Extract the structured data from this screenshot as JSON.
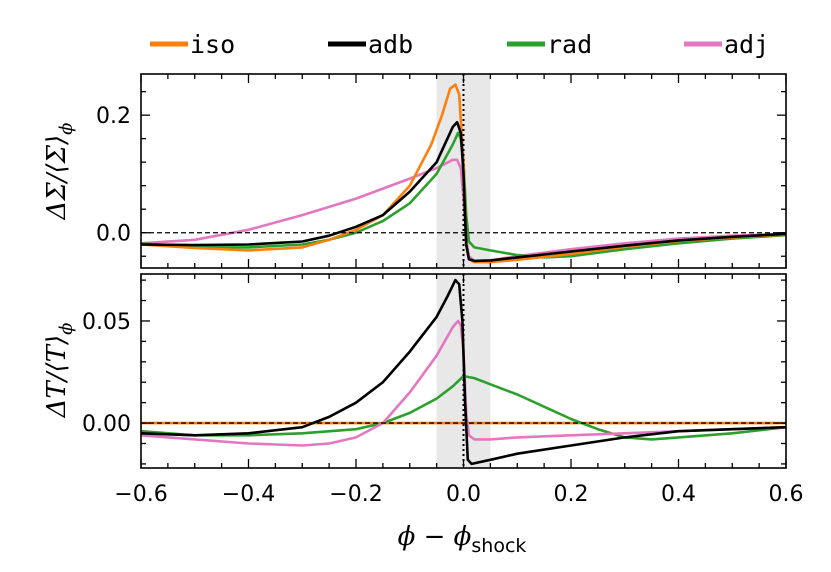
{
  "chart_data": {
    "type": "line",
    "legend": {
      "placement": "top",
      "entries": [
        {
          "key": "iso",
          "label": "iso",
          "color": "#ff7f0e"
        },
        {
          "key": "adb",
          "label": "adb",
          "color": "#000000"
        },
        {
          "key": "rad",
          "label": "rad",
          "color": "#2ca02c"
        },
        {
          "key": "adj",
          "label": "adj",
          "color": "#e377c2"
        }
      ]
    },
    "shared_x": {
      "label": "φ − φ_shock",
      "label_main": "ϕ − ϕ",
      "label_sub": "shock",
      "xlim": [
        -0.6,
        0.6
      ],
      "ticks": [
        -0.6,
        -0.4,
        -0.2,
        0.0,
        0.2,
        0.4,
        0.6
      ],
      "tick_labels": [
        "−0.6",
        "−0.4",
        "−0.2",
        "0.0",
        "0.2",
        "0.4",
        "0.6"
      ]
    },
    "shaded_band": {
      "x": [
        -0.05,
        0.05
      ],
      "color": "#e8e8e8"
    },
    "vline": {
      "x": 0.0,
      "style": "dotted"
    },
    "panels": [
      {
        "id": "top",
        "ylabel": "ΔΣ/⟨Σ⟩_φ",
        "ylabel_main": "ΔΣ/⟨Σ⟩",
        "ylabel_sub": "ϕ",
        "ylim": [
          -0.06,
          0.27
        ],
        "yticks": [
          0.0,
          0.2
        ],
        "ytick_labels": [
          "0.0",
          "0.2"
        ],
        "hline": 0.0,
        "series": [
          {
            "key": "adj",
            "points": [
              [
                -0.6,
                -0.018
              ],
              [
                -0.5,
                -0.012
              ],
              [
                -0.4,
                0.005
              ],
              [
                -0.3,
                0.03
              ],
              [
                -0.2,
                0.058
              ],
              [
                -0.1,
                0.092
              ],
              [
                -0.05,
                0.11
              ],
              [
                -0.02,
                0.124
              ],
              [
                -0.012,
                0.124
              ],
              [
                -0.005,
                0.11
              ],
              [
                0.0,
                0.06
              ],
              [
                0.005,
                -0.01
              ],
              [
                0.01,
                -0.04
              ],
              [
                0.02,
                -0.048
              ],
              [
                0.05,
                -0.047
              ],
              [
                0.1,
                -0.04
              ],
              [
                0.2,
                -0.028
              ],
              [
                0.3,
                -0.018
              ],
              [
                0.4,
                -0.01
              ],
              [
                0.5,
                -0.005
              ],
              [
                0.6,
                -0.002
              ]
            ]
          },
          {
            "key": "rad",
            "points": [
              [
                -0.6,
                -0.018
              ],
              [
                -0.5,
                -0.025
              ],
              [
                -0.4,
                -0.025
              ],
              [
                -0.3,
                -0.02
              ],
              [
                -0.25,
                -0.012
              ],
              [
                -0.2,
                0.0
              ],
              [
                -0.15,
                0.02
              ],
              [
                -0.1,
                0.05
              ],
              [
                -0.05,
                0.1
              ],
              [
                -0.02,
                0.15
              ],
              [
                -0.01,
                0.17
              ],
              [
                -0.005,
                0.16
              ],
              [
                0.0,
                0.12
              ],
              [
                0.005,
                0.03
              ],
              [
                0.01,
                -0.015
              ],
              [
                0.02,
                -0.025
              ],
              [
                0.05,
                -0.03
              ],
              [
                0.1,
                -0.038
              ],
              [
                0.15,
                -0.042
              ],
              [
                0.2,
                -0.04
              ],
              [
                0.3,
                -0.028
              ],
              [
                0.4,
                -0.018
              ],
              [
                0.5,
                -0.01
              ],
              [
                0.6,
                -0.004
              ]
            ]
          },
          {
            "key": "iso",
            "points": [
              [
                -0.6,
                -0.02
              ],
              [
                -0.5,
                -0.026
              ],
              [
                -0.4,
                -0.03
              ],
              [
                -0.3,
                -0.025
              ],
              [
                -0.25,
                -0.012
              ],
              [
                -0.2,
                0.005
              ],
              [
                -0.15,
                0.03
              ],
              [
                -0.1,
                0.08
              ],
              [
                -0.06,
                0.15
              ],
              [
                -0.04,
                0.2
              ],
              [
                -0.025,
                0.245
              ],
              [
                -0.015,
                0.252
              ],
              [
                -0.008,
                0.235
              ],
              [
                0.0,
                0.12
              ],
              [
                0.005,
                -0.02
              ],
              [
                0.01,
                -0.045
              ],
              [
                0.02,
                -0.05
              ],
              [
                0.05,
                -0.05
              ],
              [
                0.1,
                -0.046
              ],
              [
                0.2,
                -0.036
              ],
              [
                0.3,
                -0.024
              ],
              [
                0.4,
                -0.014
              ],
              [
                0.5,
                -0.008
              ],
              [
                0.6,
                -0.003
              ]
            ]
          },
          {
            "key": "adb",
            "points": [
              [
                -0.6,
                -0.02
              ],
              [
                -0.5,
                -0.021
              ],
              [
                -0.4,
                -0.02
              ],
              [
                -0.3,
                -0.015
              ],
              [
                -0.25,
                -0.005
              ],
              [
                -0.2,
                0.01
              ],
              [
                -0.15,
                0.03
              ],
              [
                -0.1,
                0.07
              ],
              [
                -0.05,
                0.12
              ],
              [
                -0.03,
                0.16
              ],
              [
                -0.02,
                0.18
              ],
              [
                -0.012,
                0.188
              ],
              [
                -0.005,
                0.17
              ],
              [
                0.0,
                0.1
              ],
              [
                0.005,
                -0.02
              ],
              [
                0.01,
                -0.045
              ],
              [
                0.02,
                -0.048
              ],
              [
                0.05,
                -0.047
              ],
              [
                0.1,
                -0.042
              ],
              [
                0.2,
                -0.032
              ],
              [
                0.3,
                -0.022
              ],
              [
                0.4,
                -0.013
              ],
              [
                0.5,
                -0.007
              ],
              [
                0.6,
                -0.002
              ]
            ]
          }
        ]
      },
      {
        "id": "bottom",
        "ylabel": "ΔT/⟨T⟩_φ",
        "ylabel_main": "ΔT/⟨T⟩",
        "ylabel_sub": "ϕ",
        "ylim": [
          -0.022,
          0.073
        ],
        "yticks": [
          0.0,
          0.05
        ],
        "ytick_labels": [
          "0.00",
          "0.05"
        ],
        "hline": 0.0,
        "series": [
          {
            "key": "iso",
            "points": [
              [
                -0.6,
                0.0
              ],
              [
                0.6,
                0.0
              ]
            ]
          },
          {
            "key": "rad",
            "points": [
              [
                -0.6,
                -0.004
              ],
              [
                -0.5,
                -0.006
              ],
              [
                -0.4,
                -0.006
              ],
              [
                -0.3,
                -0.005
              ],
              [
                -0.2,
                -0.003
              ],
              [
                -0.15,
                0.0
              ],
              [
                -0.1,
                0.005
              ],
              [
                -0.05,
                0.012
              ],
              [
                -0.02,
                0.018
              ],
              [
                0.0,
                0.023
              ],
              [
                0.02,
                0.022
              ],
              [
                0.05,
                0.019
              ],
              [
                0.1,
                0.014
              ],
              [
                0.15,
                0.008
              ],
              [
                0.2,
                0.002
              ],
              [
                0.25,
                -0.003
              ],
              [
                0.3,
                -0.007
              ],
              [
                0.35,
                -0.008
              ],
              [
                0.4,
                -0.007
              ],
              [
                0.5,
                -0.005
              ],
              [
                0.6,
                -0.002
              ]
            ]
          },
          {
            "key": "adj",
            "points": [
              [
                -0.6,
                -0.006
              ],
              [
                -0.5,
                -0.008
              ],
              [
                -0.4,
                -0.01
              ],
              [
                -0.3,
                -0.011
              ],
              [
                -0.25,
                -0.01
              ],
              [
                -0.2,
                -0.007
              ],
              [
                -0.15,
                0.0
              ],
              [
                -0.1,
                0.015
              ],
              [
                -0.05,
                0.033
              ],
              [
                -0.02,
                0.047
              ],
              [
                -0.01,
                0.05
              ],
              [
                -0.005,
                0.048
              ],
              [
                0.0,
                0.035
              ],
              [
                0.005,
                0.005
              ],
              [
                0.01,
                -0.006
              ],
              [
                0.02,
                -0.008
              ],
              [
                0.05,
                -0.008
              ],
              [
                0.1,
                -0.007
              ],
              [
                0.2,
                -0.006
              ],
              [
                0.3,
                -0.005
              ],
              [
                0.4,
                -0.004
              ],
              [
                0.5,
                -0.003
              ],
              [
                0.6,
                -0.002
              ]
            ]
          },
          {
            "key": "adb",
            "points": [
              [
                -0.6,
                -0.005
              ],
              [
                -0.5,
                -0.006
              ],
              [
                -0.4,
                -0.005
              ],
              [
                -0.3,
                -0.002
              ],
              [
                -0.25,
                0.003
              ],
              [
                -0.2,
                0.01
              ],
              [
                -0.15,
                0.02
              ],
              [
                -0.1,
                0.035
              ],
              [
                -0.05,
                0.052
              ],
              [
                -0.03,
                0.062
              ],
              [
                -0.015,
                0.07
              ],
              [
                -0.008,
                0.068
              ],
              [
                -0.002,
                0.05
              ],
              [
                0.003,
                0.01
              ],
              [
                0.008,
                -0.018
              ],
              [
                0.015,
                -0.02
              ],
              [
                0.05,
                -0.018
              ],
              [
                0.1,
                -0.015
              ],
              [
                0.2,
                -0.011
              ],
              [
                0.3,
                -0.007
              ],
              [
                0.4,
                -0.004
              ],
              [
                0.5,
                -0.003
              ],
              [
                0.6,
                -0.002
              ]
            ]
          }
        ]
      }
    ]
  }
}
